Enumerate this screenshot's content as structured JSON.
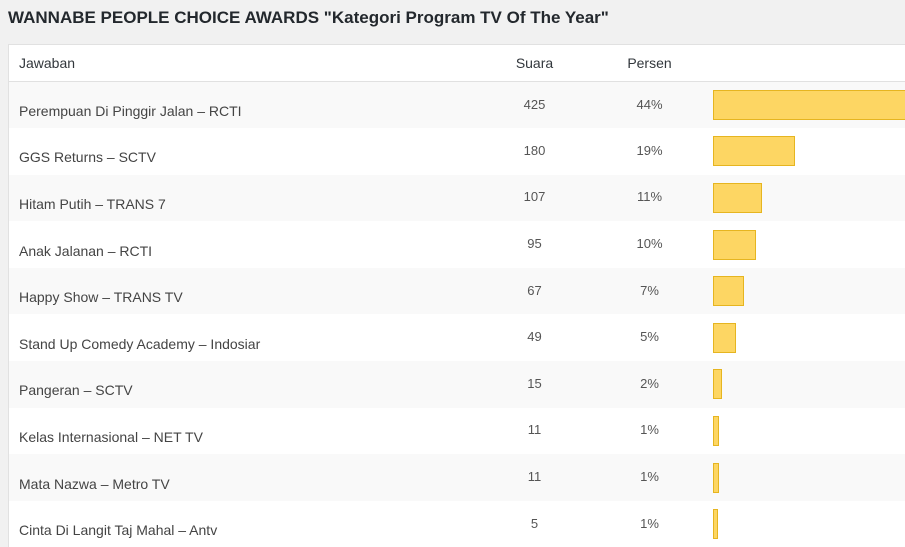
{
  "poll": {
    "title": "WANNABE PEOPLE CHOICE AWARDS \"Kategori Program TV Of The Year\"",
    "columns": {
      "answer": "Jawaban",
      "votes": "Suara",
      "percent": "Persen"
    },
    "bar_color": "#fdd663",
    "bar_border_color": "#e6b520",
    "rows": [
      {
        "answer": "Perempuan Di Pinggir Jalan – RCTI",
        "votes": "425",
        "percent": "44%",
        "share": 1.0
      },
      {
        "answer": "GGS Returns – SCTV",
        "votes": "180",
        "percent": "19%",
        "share": 0.42
      },
      {
        "answer": "Hitam Putih – TRANS 7",
        "votes": "107",
        "percent": "11%",
        "share": 0.25
      },
      {
        "answer": "Anak Jalanan – RCTI",
        "votes": "95",
        "percent": "10%",
        "share": 0.22
      },
      {
        "answer": "Happy Show – TRANS TV",
        "votes": "67",
        "percent": "7%",
        "share": 0.16
      },
      {
        "answer": "Stand Up Comedy Academy – Indosiar",
        "votes": "49",
        "percent": "5%",
        "share": 0.12
      },
      {
        "answer": "Pangeran – SCTV",
        "votes": "15",
        "percent": "2%",
        "share": 0.045
      },
      {
        "answer": "Kelas Internasional – NET TV",
        "votes": "11",
        "percent": "1%",
        "share": 0.033
      },
      {
        "answer": "Mata Nazwa – Metro TV",
        "votes": "11",
        "percent": "1%",
        "share": 0.033
      },
      {
        "answer": "Cinta Di Langit Taj Mahal – Antv",
        "votes": "5",
        "percent": "1%",
        "share": 0.02
      }
    ]
  }
}
